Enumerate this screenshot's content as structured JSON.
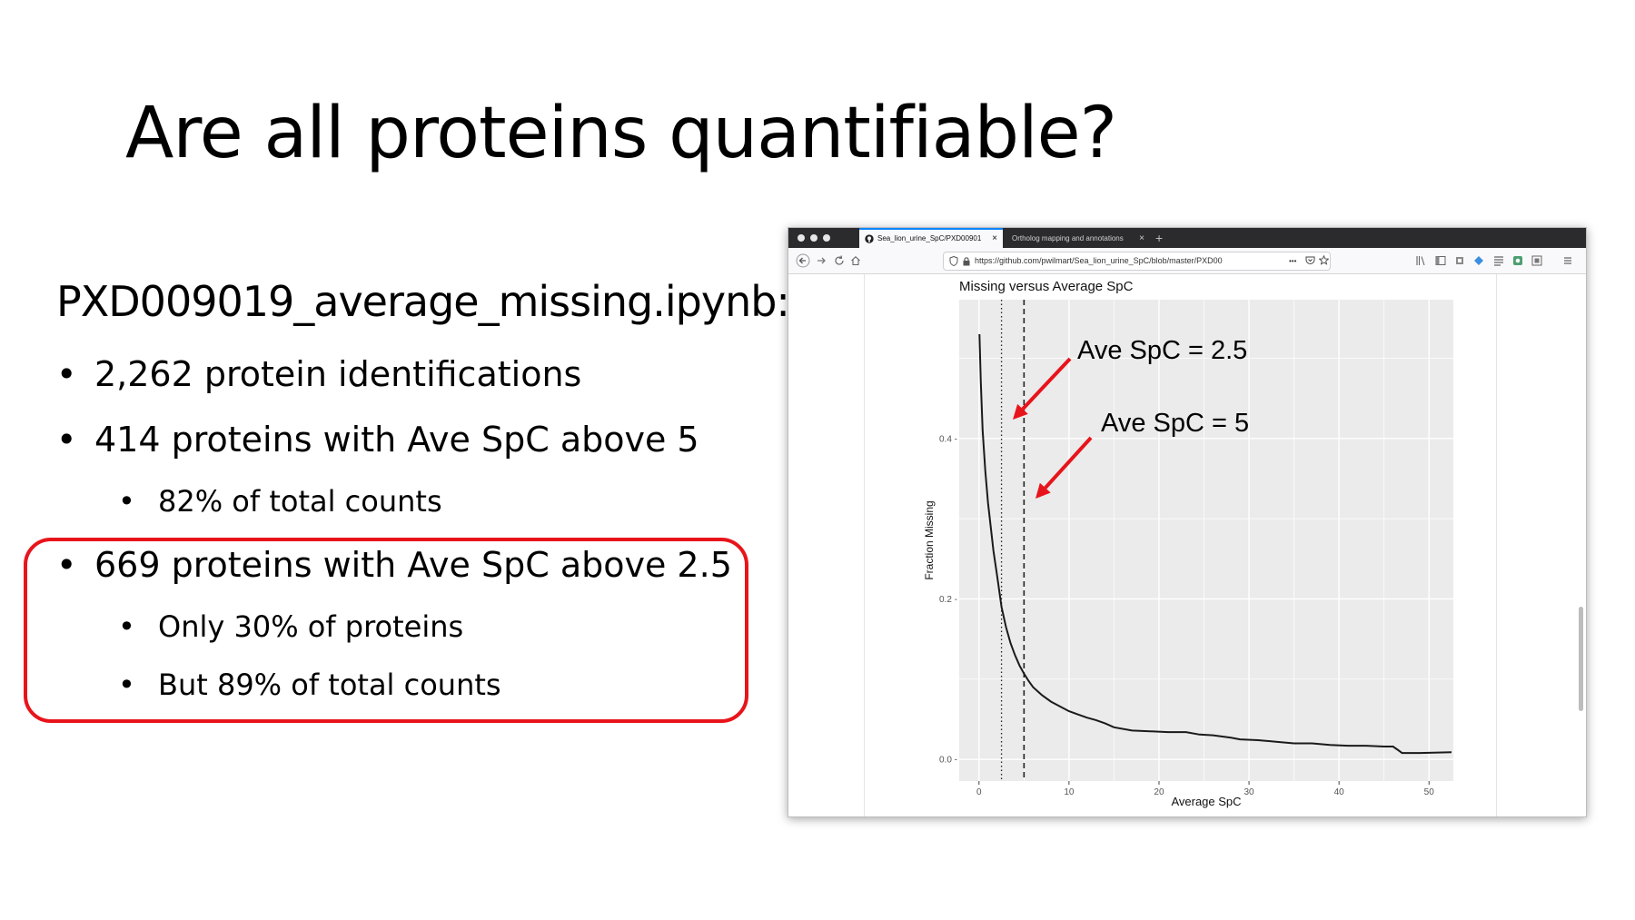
{
  "slide": {
    "title": "Are all proteins quantifiable?",
    "notebook": "PXD009019_average_missing.ipynb:",
    "bullet_symbol": "•",
    "bullets": [
      "2,262 protein identifications",
      "414 proteins with Ave SpC above 5",
      "82% of total counts",
      "669 proteins with Ave SpC above 2.5",
      "Only 30% of proteins",
      "But 89% of total counts"
    ],
    "highlight_color": "#e8141b"
  },
  "browser": {
    "tabs": [
      {
        "label": "Sea_lion_urine_SpC/PXD00901",
        "active": true,
        "icon": "github-icon"
      },
      {
        "label": "Ortholog mapping and annotations",
        "active": false
      }
    ],
    "close_glyph": "×",
    "new_tab_glyph": "+",
    "url": "https://github.com/pwilmart/Sea_lion_urine_SpC/blob/master/PXD00",
    "url_dots": "•••",
    "nav_icons": [
      "back-icon",
      "forward-icon",
      "reload-icon",
      "home-icon"
    ],
    "toolbar_icons": [
      "library-icon",
      "sidebar-icon",
      "extension-icon",
      "extension-icon",
      "reader-icon",
      "extension-icon",
      "extension-icon",
      "menu-icon"
    ]
  },
  "chart_data": {
    "type": "line",
    "title": "Missing versus Average SpC",
    "xlabel": "Average SpC",
    "ylabel": "Fraction Missing",
    "xlim": [
      -2.2,
      52.7
    ],
    "ylim": [
      -0.027,
      0.573
    ],
    "xticks": [
      0,
      10,
      20,
      30,
      40,
      50
    ],
    "xtick_labels": [
      "0",
      "10",
      "20",
      "30",
      "40",
      "50"
    ],
    "yticks": [
      0.0,
      0.2,
      0.4
    ],
    "ytick_labels": [
      "0.0 -",
      "0.2 -",
      "0.4 -"
    ],
    "grid": true,
    "panel_background": "#ebebeb",
    "series": [
      {
        "color": "#1a1a1a",
        "x": [
          0.05,
          0.2,
          0.4,
          0.7,
          1.0,
          1.3,
          1.6,
          2.0,
          2.5,
          3.0,
          3.5,
          4.0,
          4.5,
          5.0,
          5.5,
          6,
          7,
          8,
          9,
          10,
          11,
          12,
          13,
          14,
          15,
          17,
          19,
          21,
          23,
          24.5,
          26,
          28,
          29,
          31,
          33,
          35,
          37,
          39,
          41,
          43,
          45,
          46,
          46.5,
          47,
          49,
          52.5
        ],
        "y": [
          0.53,
          0.47,
          0.41,
          0.36,
          0.32,
          0.29,
          0.26,
          0.23,
          0.19,
          0.165,
          0.145,
          0.13,
          0.117,
          0.107,
          0.098,
          0.09,
          0.08,
          0.072,
          0.066,
          0.06,
          0.056,
          0.052,
          0.049,
          0.045,
          0.04,
          0.036,
          0.035,
          0.034,
          0.034,
          0.031,
          0.03,
          0.027,
          0.025,
          0.024,
          0.022,
          0.02,
          0.02,
          0.018,
          0.017,
          0.017,
          0.016,
          0.016,
          0.012,
          0.008,
          0.008,
          0.009
        ]
      }
    ],
    "vlines": [
      {
        "x": 2.5,
        "style": "dotted"
      },
      {
        "x": 5,
        "style": "dashed"
      }
    ],
    "annotations": [
      {
        "text": "Ave SpC = 2.5",
        "arrow_color": "#e8141b"
      },
      {
        "text": "Ave SpC = 5",
        "arrow_color": "#e8141b"
      }
    ]
  }
}
